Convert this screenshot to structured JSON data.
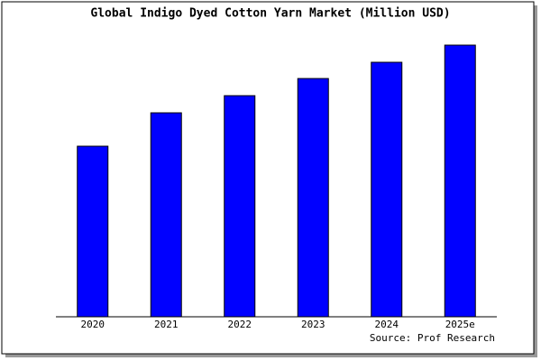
{
  "chart_data": {
    "type": "bar",
    "title": "Global Indigo Dyed Cotton Yarn Market (Million USD)",
    "categories": [
      "2020",
      "2021",
      "2022",
      "2023",
      "2024",
      "2025e"
    ],
    "values": [
      189,
      226,
      245,
      264,
      282,
      301
    ],
    "color": "#0000ff",
    "ylim": [
      0,
      303
    ],
    "source": "Source: Prof Research"
  }
}
